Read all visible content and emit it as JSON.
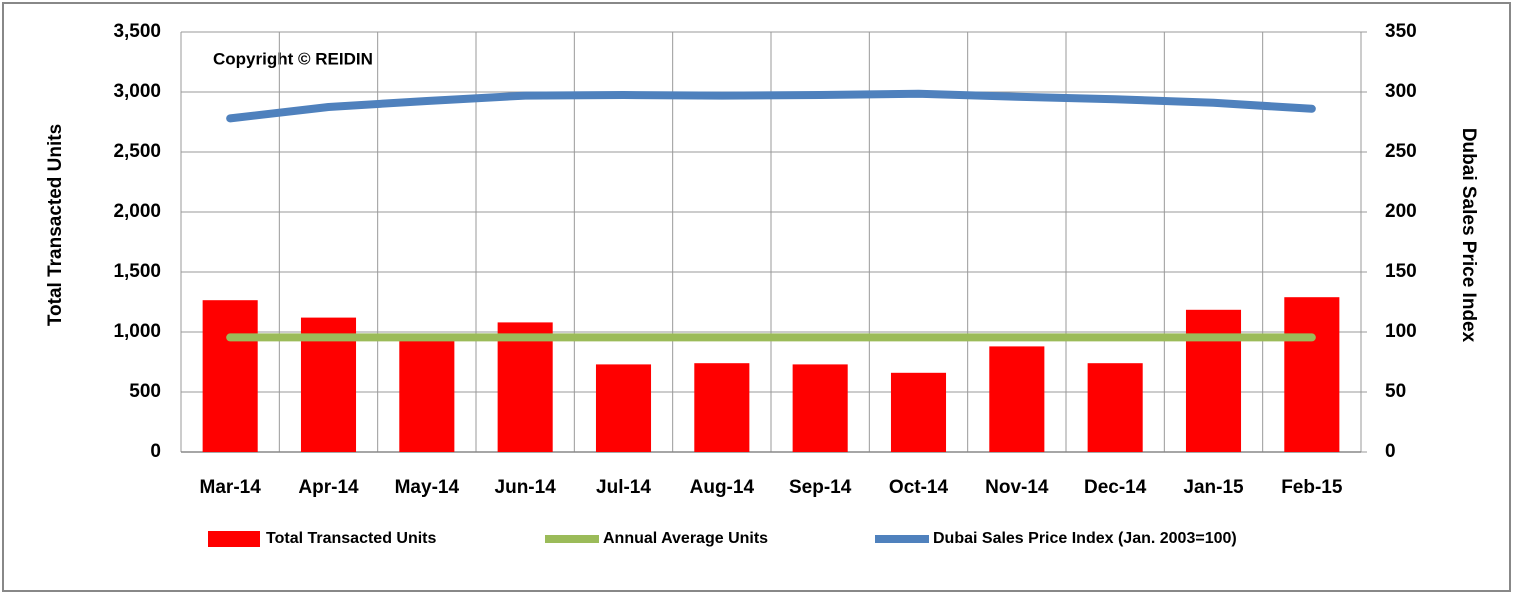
{
  "chart_data": {
    "type": "bar_line",
    "annotation": "Copyright © REIDIN",
    "y_label": "Total Transacted Units",
    "y2_label": "Dubai Sales Price Index",
    "categories": [
      "Mar-14",
      "Apr-14",
      "May-14",
      "Jun-14",
      "Jul-14",
      "Aug-14",
      "Sep-14",
      "Oct-14",
      "Nov-14",
      "Dec-14",
      "Jan-15",
      "Feb-15"
    ],
    "series": [
      {
        "name": "Total Transacted Units",
        "kind": "bar",
        "color": "#ff0000",
        "values": [
          1265,
          1120,
          950,
          1080,
          730,
          740,
          730,
          660,
          880,
          740,
          1185,
          1290
        ]
      },
      {
        "name": "Annual Average Units",
        "kind": "line",
        "color": "#9bbb59",
        "values": [
          955,
          955,
          955,
          955,
          955,
          955,
          955,
          955,
          955,
          955,
          955,
          955
        ]
      },
      {
        "name": "Dubai Sales Price Index (Jan. 2003=100)",
        "kind": "line",
        "axis": "y2",
        "color": "#4f81bd",
        "values": [
          278,
          287.5,
          292.5,
          297,
          297.5,
          297,
          297.5,
          298.5,
          296,
          294,
          291,
          286
        ]
      }
    ],
    "ylim": [
      0,
      3500
    ],
    "yticks": [
      0,
      500,
      {
        "value": 1000,
        "label": "1,000"
      },
      {
        "value": 1500,
        "label": "1,500"
      },
      {
        "value": 2000,
        "label": "2,000"
      },
      {
        "value": 2500,
        "label": "2,500"
      },
      {
        "value": 3000,
        "label": "3,000"
      },
      {
        "value": 3500,
        "label": "3,500"
      }
    ],
    "y2lim": [
      0,
      350
    ],
    "y2ticks": [
      0,
      50,
      100,
      150,
      200,
      250,
      300,
      350
    ],
    "grid": true,
    "legend": "bottom"
  }
}
